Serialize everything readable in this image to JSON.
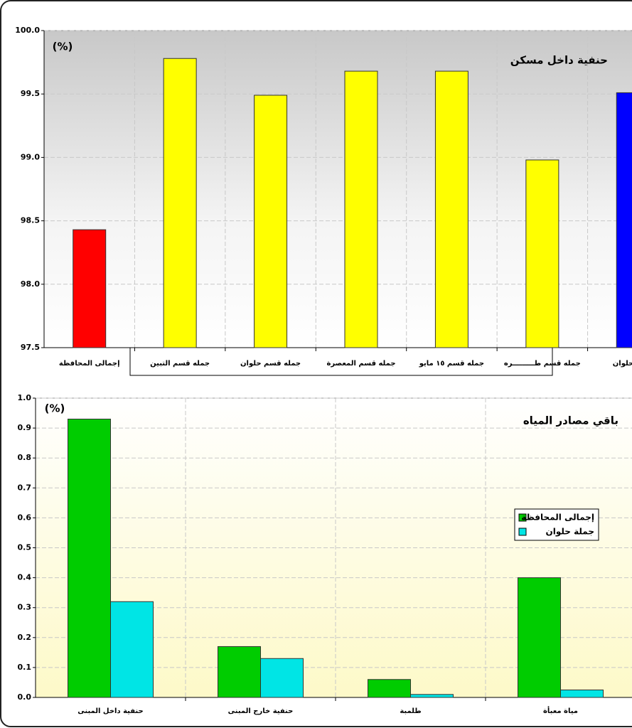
{
  "chart_data": [
    {
      "type": "bar",
      "title": "حنفية داخل مسكن",
      "unit_label": "(%)",
      "categories": [
        "إجمالى المحافظة",
        "جمله قسم التبين",
        "جمله قسم حلوان",
        "جمله قسم المعصرة",
        "جمله قسم ١٥ مايو",
        "جمله قسم طـــــــــره",
        "جملة حلوان"
      ],
      "values": [
        98.43,
        99.78,
        99.49,
        99.68,
        99.68,
        98.98,
        99.51
      ],
      "colors": [
        "#ff0000",
        "#ffff00",
        "#ffff00",
        "#ffff00",
        "#ffff00",
        "#ffff00",
        "#0000ff"
      ],
      "ylim": [
        97.5,
        100
      ],
      "yticks": [
        97.5,
        {
          "value": 98,
          "label": "98.0"
        },
        98.5,
        {
          "value": 99,
          "label": "99.0"
        },
        99.5,
        {
          "value": 100,
          "label": "100.0"
        }
      ],
      "grid": true
    },
    {
      "type": "grouped_bar",
      "title": "باقي مصادر المياه",
      "unit_label": "(%)",
      "categories": [
        "حنفية داخل المبنى",
        "حنفية خارج المبنى",
        "طلمبة",
        "مياة معبأة"
      ],
      "series": [
        {
          "name": "إجمالى المحافظة",
          "color": "#00cc00",
          "values": [
            0.93,
            0.17,
            0.06,
            0.4
          ]
        },
        {
          "name": "جملة حلوان",
          "color": "#00e5e5",
          "values": [
            0.32,
            0.13,
            0.01,
            0.025
          ]
        }
      ],
      "ylim": [
        0,
        1
      ],
      "yticks": [
        {
          "value": 0,
          "label": "0.0"
        },
        0.1,
        0.2,
        0.3,
        0.4,
        0.5,
        0.6,
        0.7,
        0.8,
        0.9,
        {
          "value": 1,
          "label": "1.0"
        }
      ],
      "grid": true,
      "legend": "right"
    }
  ]
}
